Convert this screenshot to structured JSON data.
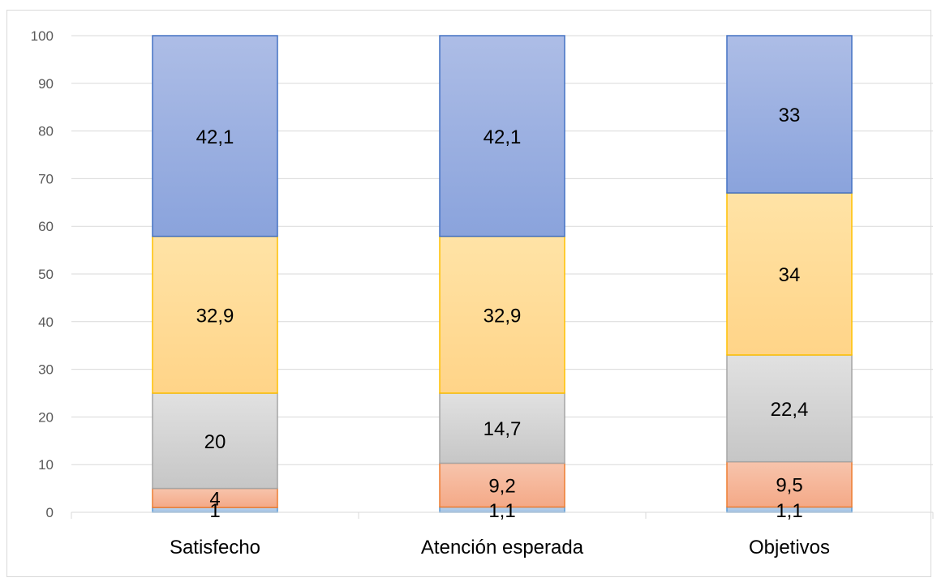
{
  "chart_data": {
    "type": "bar",
    "stacked": true,
    "categories": [
      "Satisfecho",
      "Atención esperada",
      "Objetivos"
    ],
    "series": [
      {
        "values": [
          1,
          1.1,
          1.1
        ],
        "labels": [
          "1",
          "1,1",
          "1,1"
        ],
        "fill_top": "#bdd3ec",
        "fill_bottom": "#9fc0e3",
        "stroke": "#5b9bd5"
      },
      {
        "values": [
          4,
          9.2,
          9.5
        ],
        "labels": [
          "4",
          "9,2",
          "9,5"
        ],
        "fill_top": "#f7c4ac",
        "fill_bottom": "#f4a987",
        "stroke": "#ed7d31"
      },
      {
        "values": [
          20,
          14.7,
          22.4
        ],
        "labels": [
          "20",
          "14,7",
          "22,4"
        ],
        "fill_top": "#e1e1e1",
        "fill_bottom": "#c6c6c6",
        "stroke": "#a5a5a5"
      },
      {
        "values": [
          32.9,
          32.9,
          34
        ],
        "labels": [
          "32,9",
          "32,9",
          "34"
        ],
        "fill_top": "#ffe3a6",
        "fill_bottom": "#ffd488",
        "stroke": "#ffc000"
      },
      {
        "values": [
          42.1,
          42.1,
          33
        ],
        "labels": [
          "42,1",
          "42,1",
          "33"
        ],
        "fill_top": "#adbde6",
        "fill_bottom": "#8aa3dc",
        "stroke": "#4472c4"
      }
    ],
    "ylim": [
      0,
      100
    ],
    "yticks": [
      0,
      10,
      20,
      30,
      40,
      50,
      60,
      70,
      80,
      90,
      100
    ],
    "grid": true,
    "legend": "none",
    "title": "",
    "xlabel": "",
    "ylabel": "",
    "colors": {
      "gridline": "#d9d9d9",
      "axis": "#d9d9d9"
    }
  }
}
